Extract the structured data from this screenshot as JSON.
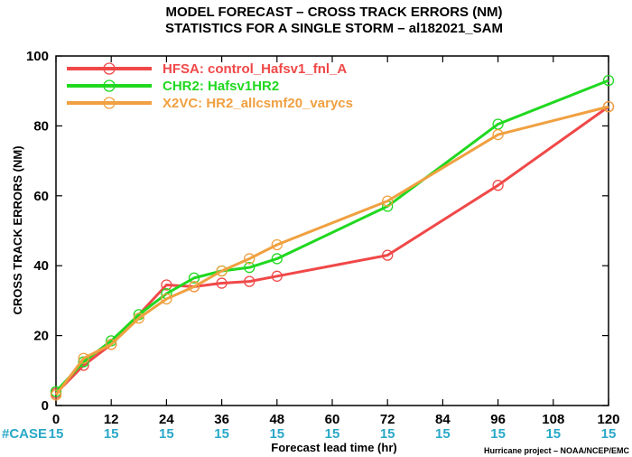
{
  "chart_data": {
    "type": "line",
    "title": "MODEL FORECAST – CROSS TRACK ERRORS (NM)",
    "subtitle": "STATISTICS FOR A SINGLE STORM – al182021_SAM",
    "xlabel": "Forecast lead time (hr)",
    "ylabel": "CROSS TRACK ERRORS (NM)",
    "xlim": [
      0,
      120
    ],
    "ylim": [
      0,
      100
    ],
    "xticks": [
      0,
      12,
      24,
      36,
      48,
      60,
      72,
      84,
      96,
      108,
      120
    ],
    "yticks": [
      0,
      20,
      40,
      60,
      80,
      100
    ],
    "grid": false,
    "legend_position": "top-left",
    "series": [
      {
        "name": "HFSA: control_Hafsv1_fnl_A",
        "color": "#f04848",
        "x": [
          0,
          6,
          12,
          24,
          30,
          36,
          42,
          48,
          72,
          96,
          120
        ],
        "y": [
          3.5,
          11.5,
          17.5,
          34.5,
          34,
          35,
          35.5,
          37,
          43,
          63,
          85.5
        ]
      },
      {
        "name": "CHR2: Hafsv1HR2",
        "color": "#20d820",
        "x": [
          0,
          6,
          12,
          18,
          24,
          30,
          36,
          42,
          48,
          72,
          96,
          120
        ],
        "y": [
          4,
          12.5,
          18.5,
          26,
          32,
          36.5,
          38.5,
          39.5,
          42,
          57,
          80.5,
          93
        ]
      },
      {
        "name": "X2VC: HR2_allcsmf20_varycs",
        "color": "#f0a040",
        "x": [
          0,
          6,
          12,
          18,
          24,
          30,
          36,
          42,
          48,
          72,
          96,
          120
        ],
        "y": [
          3,
          13.5,
          17.5,
          25,
          30.5,
          34,
          38.5,
          42,
          46,
          58.5,
          77.5,
          85.5
        ]
      }
    ],
    "case_label": "#CASE",
    "case_counts": [
      "15",
      "15",
      "15",
      "15",
      "15",
      "15",
      "15",
      "15",
      "15",
      "15",
      "15"
    ]
  },
  "credit": "Hurricane project – NOAA/NCEP/EMC"
}
